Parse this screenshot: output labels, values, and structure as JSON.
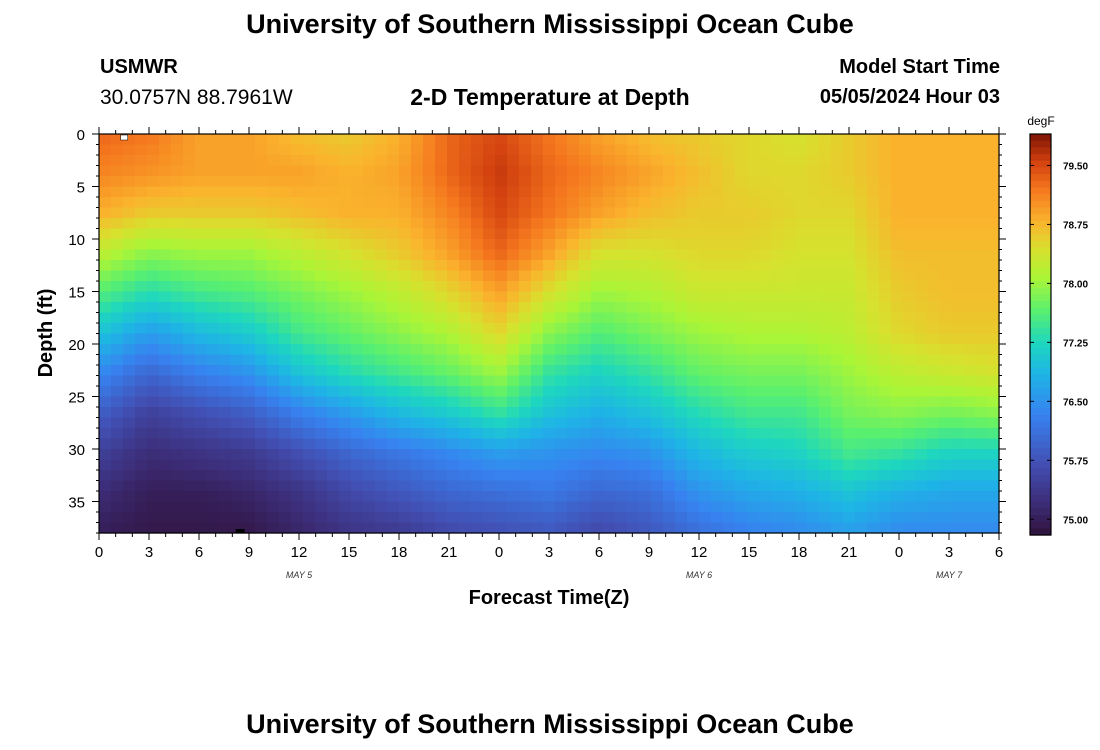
{
  "header": {
    "title": "University of Southern Mississippi Ocean Cube",
    "station": "USMWR",
    "coordinates": "30.0757N  88.7961W",
    "subtitle": "2-D Temperature at Depth",
    "model_start_label": "Model Start Time",
    "model_start_value": "05/05/2024 Hour 03"
  },
  "footer": {
    "title": "University of Southern Mississippi Ocean Cube"
  },
  "chart_data": {
    "type": "heatmap",
    "title": "2-D Temperature at Depth",
    "xlabel": "Forecast Time(Z)",
    "ylabel": "Depth (ft)",
    "x_range_hours": [
      0,
      54
    ],
    "y_range_ft": [
      0,
      38
    ],
    "x_tick_labels": [
      "0",
      "3",
      "6",
      "9",
      "12",
      "15",
      "18",
      "21",
      "0",
      "3",
      "6",
      "9",
      "12",
      "15",
      "18",
      "21",
      "0",
      "3",
      "6"
    ],
    "y_tick_labels": [
      "0",
      "5",
      "10",
      "15",
      "20",
      "25",
      "30",
      "35"
    ],
    "date_labels": [
      {
        "label": "MAY 5",
        "hour": 12
      },
      {
        "label": "MAY 6",
        "hour": 36
      },
      {
        "label": "MAY 7",
        "hour": 51
      }
    ],
    "colorbar": {
      "units": "degF",
      "range": [
        74.8,
        79.9
      ],
      "tick_labels": [
        "79.50",
        "78.75",
        "78.00",
        "77.25",
        "76.50",
        "75.75",
        "75.00"
      ],
      "ticks": [
        79.5,
        78.75,
        78.0,
        77.25,
        76.5,
        75.75,
        75.0
      ]
    },
    "profiles": [
      {
        "hour": 0,
        "values": [
          79.3,
          79.1,
          78.8,
          78.2,
          77.6,
          77.0,
          76.4,
          75.9,
          75.5,
          75.2,
          75.0
        ]
      },
      {
        "hour": 3,
        "values": [
          79.2,
          79.0,
          78.6,
          77.9,
          77.3,
          76.6,
          76.0,
          75.5,
          75.2,
          75.0,
          74.9
        ]
      },
      {
        "hour": 6,
        "values": [
          78.9,
          78.9,
          78.6,
          78.0,
          77.5,
          76.9,
          76.3,
          75.7,
          75.3,
          75.0,
          74.9
        ]
      },
      {
        "hour": 9,
        "values": [
          78.9,
          78.9,
          78.6,
          78.0,
          77.6,
          77.1,
          76.5,
          75.9,
          75.4,
          75.1,
          74.9
        ]
      },
      {
        "hour": 12,
        "values": [
          78.7,
          78.9,
          78.7,
          78.2,
          77.8,
          77.5,
          77.0,
          76.3,
          75.7,
          75.3,
          75.1
        ]
      },
      {
        "hour": 15,
        "values": [
          78.6,
          78.8,
          78.8,
          78.4,
          78.0,
          77.7,
          77.3,
          76.6,
          76.0,
          75.6,
          75.3
        ]
      },
      {
        "hour": 18,
        "values": [
          78.8,
          78.9,
          78.8,
          78.6,
          78.2,
          77.9,
          77.5,
          76.9,
          76.2,
          75.8,
          75.4
        ]
      },
      {
        "hour": 21,
        "values": [
          79.3,
          79.3,
          79.1,
          78.9,
          78.5,
          78.1,
          77.7,
          77.1,
          76.4,
          76.0,
          75.6
        ]
      },
      {
        "hour": 24,
        "values": [
          79.5,
          79.6,
          79.5,
          79.3,
          78.9,
          78.5,
          78.0,
          77.4,
          76.6,
          76.1,
          75.7
        ]
      },
      {
        "hour": 27,
        "values": [
          79.2,
          79.3,
          79.2,
          78.9,
          78.4,
          77.9,
          77.4,
          77.0,
          76.5,
          76.2,
          75.8
        ]
      },
      {
        "hour": 30,
        "values": [
          78.9,
          79.1,
          78.9,
          78.4,
          78.0,
          77.6,
          77.2,
          76.8,
          76.4,
          76.0,
          75.6
        ]
      },
      {
        "hour": 33,
        "values": [
          78.7,
          78.9,
          78.7,
          78.4,
          78.1,
          77.8,
          77.4,
          77.0,
          76.5,
          76.1,
          75.8
        ]
      },
      {
        "hour": 36,
        "values": [
          78.6,
          78.7,
          78.6,
          78.5,
          78.3,
          78.0,
          77.7,
          77.3,
          76.9,
          76.5,
          76.1
        ]
      },
      {
        "hour": 39,
        "values": [
          78.5,
          78.5,
          78.6,
          78.5,
          78.3,
          78.1,
          77.8,
          77.5,
          77.1,
          76.7,
          76.3
        ]
      },
      {
        "hour": 42,
        "values": [
          78.4,
          78.5,
          78.5,
          78.4,
          78.3,
          78.1,
          77.8,
          77.5,
          77.2,
          76.8,
          76.4
        ]
      },
      {
        "hour": 45,
        "values": [
          78.6,
          78.6,
          78.5,
          78.4,
          78.3,
          78.2,
          78.0,
          77.8,
          77.5,
          77.0,
          76.6
        ]
      },
      {
        "hour": 48,
        "values": [
          78.8,
          78.8,
          78.8,
          78.7,
          78.6,
          78.5,
          78.2,
          77.9,
          77.4,
          76.8,
          76.4
        ]
      },
      {
        "hour": 51,
        "values": [
          78.8,
          78.8,
          78.8,
          78.7,
          78.7,
          78.6,
          78.3,
          77.8,
          77.2,
          76.7,
          76.4
        ]
      },
      {
        "hour": 54,
        "values": [
          78.8,
          78.8,
          78.8,
          78.7,
          78.7,
          78.6,
          78.4,
          77.9,
          77.2,
          76.7,
          76.4
        ]
      }
    ],
    "profile_depths_ft": [
      0,
      3.8,
      7.6,
      11.4,
      15.2,
      19,
      22.8,
      26.6,
      30.4,
      34.2,
      38
    ]
  }
}
